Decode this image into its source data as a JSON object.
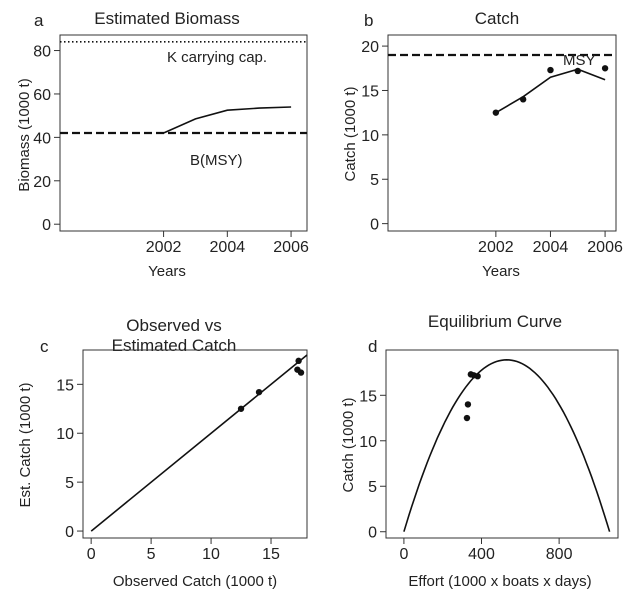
{
  "chart_data": [
    {
      "panel": "a",
      "type": "line",
      "title": "Estimated Biomass",
      "xlabel": "Years",
      "ylabel": "Biomass (1000 t)",
      "xlim": [
        2002,
        2006
      ],
      "ylim": [
        0,
        85
      ],
      "xticks": [
        2002,
        2004,
        2006
      ],
      "yticks": [
        0,
        20,
        40,
        60,
        80
      ],
      "series": [
        {
          "x": [
            2002,
            2003,
            2004,
            2005,
            2006
          ],
          "values": [
            42,
            48.5,
            52.5,
            53.5,
            54
          ]
        }
      ],
      "reference_lines": [
        {
          "label": "K carrying cap.",
          "y": 84,
          "style": "dotted"
        },
        {
          "label": "B(MSY)",
          "y": 42,
          "style": "dashed"
        }
      ]
    },
    {
      "panel": "b",
      "type": "line",
      "title": "Catch",
      "xlabel": "Years",
      "ylabel": "Catch (1000 t)",
      "xlim": [
        2002,
        2006
      ],
      "ylim": [
        0,
        20
      ],
      "xticks": [
        2002,
        2004,
        2006
      ],
      "yticks": [
        0,
        5,
        10,
        15,
        20
      ],
      "series": [
        {
          "x": [
            2002,
            2003,
            2004,
            2005,
            2006
          ],
          "values": [
            12.5,
            14.3,
            16.5,
            17.4,
            16.2
          ]
        }
      ],
      "points": {
        "x": [
          2002,
          2003,
          2004,
          2005,
          2006
        ],
        "y": [
          12.5,
          14.0,
          17.3,
          17.2,
          17.5
        ]
      },
      "reference_lines": [
        {
          "label": "MSY",
          "y": 19,
          "style": "dashed"
        }
      ]
    },
    {
      "panel": "c",
      "type": "scatter",
      "title_lines": [
        "Observed vs",
        "Estimated Catch"
      ],
      "xlabel": "Observed Catch (1000 t)",
      "ylabel": "Est. Catch (1000 t)",
      "xlim": [
        0,
        18
      ],
      "ylim": [
        0,
        18
      ],
      "xticks": [
        0,
        5,
        10,
        15
      ],
      "yticks": [
        0,
        5,
        10,
        15
      ],
      "points": {
        "x": [
          12.5,
          14.0,
          17.2,
          17.3,
          17.5
        ],
        "y": [
          12.5,
          14.2,
          16.5,
          17.4,
          16.2
        ]
      },
      "line": {
        "x": [
          0,
          18
        ],
        "y": [
          0,
          18
        ]
      }
    },
    {
      "panel": "d",
      "type": "scatter",
      "title": "Equilibrium Curve",
      "xlabel": "Effort (1000 x boats x days)",
      "ylabel": "Catch (1000 t)",
      "xlim": [
        0,
        1100
      ],
      "ylim": [
        0,
        19
      ],
      "xticks": [
        0,
        400,
        800
      ],
      "yticks": [
        0,
        5,
        10,
        15
      ],
      "points": {
        "x": [
          325,
          330,
          345,
          360,
          380
        ],
        "y": [
          12.5,
          14.0,
          17.3,
          17.2,
          17.1
        ]
      },
      "curve": {
        "type": "parabola",
        "peak_x": 530,
        "peak_y": 18.9,
        "x_intercepts": [
          0,
          1060
        ]
      }
    }
  ]
}
